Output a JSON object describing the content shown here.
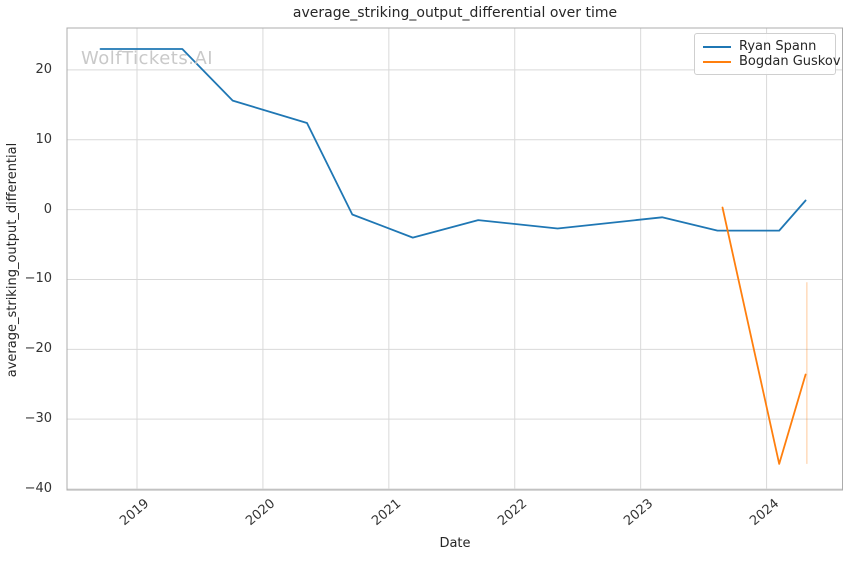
{
  "colors": {
    "background": "#ffffff",
    "grid": "#d9d9d9",
    "spine": "#acacac",
    "text": "#262626",
    "tick_text": "#333333",
    "watermark": "#c9c9c9",
    "series_blue": "#1f77b4",
    "series_orange": "#ff7f0e"
  },
  "chart_data": {
    "type": "line",
    "title": "average_striking_output_differential over time",
    "xlabel": "Date",
    "ylabel": "average_striking_output_differential",
    "watermark": "WolfTickets.AI",
    "grid": true,
    "legend_position": "upper right",
    "xlim": [
      2018.444,
      2024.603
    ],
    "ylim": [
      -40.14,
      26.0
    ],
    "xticks": [
      2019,
      2020,
      2021,
      2022,
      2023,
      2024
    ],
    "xtick_labels": [
      "2019",
      "2020",
      "2021",
      "2022",
      "2023",
      "2024"
    ],
    "yticks": [
      20,
      10,
      0,
      -10,
      -20,
      -30,
      -40
    ],
    "ytick_labels": [
      "20",
      "10",
      "0",
      "−10",
      "−20",
      "−30",
      "−40"
    ],
    "series": [
      {
        "name": "Ryan Spann",
        "color": "#1f77b4",
        "x": [
          2018.71,
          2019.36,
          2019.76,
          2020.35,
          2020.71,
          2021.19,
          2021.71,
          2022.34,
          2023.17,
          2023.61,
          2024.1,
          2024.31
        ],
        "y": [
          23.0,
          23.0,
          15.6,
          12.4,
          -0.7,
          -4.0,
          -1.5,
          -2.7,
          -1.1,
          -3.0,
          -3.0,
          1.3
        ]
      },
      {
        "name": "Bogdan Guskov",
        "color": "#ff7f0e",
        "x": [
          2023.65,
          2024.1,
          2024.31
        ],
        "y": [
          0.3,
          -36.4,
          -23.6
        ]
      }
    ],
    "error_bar": {
      "series": "Bogdan Guskov",
      "x": 2024.32,
      "y_from": -10.4,
      "y_to": -36.4,
      "color": "#ff7f0e",
      "opacity": 0.35
    }
  }
}
